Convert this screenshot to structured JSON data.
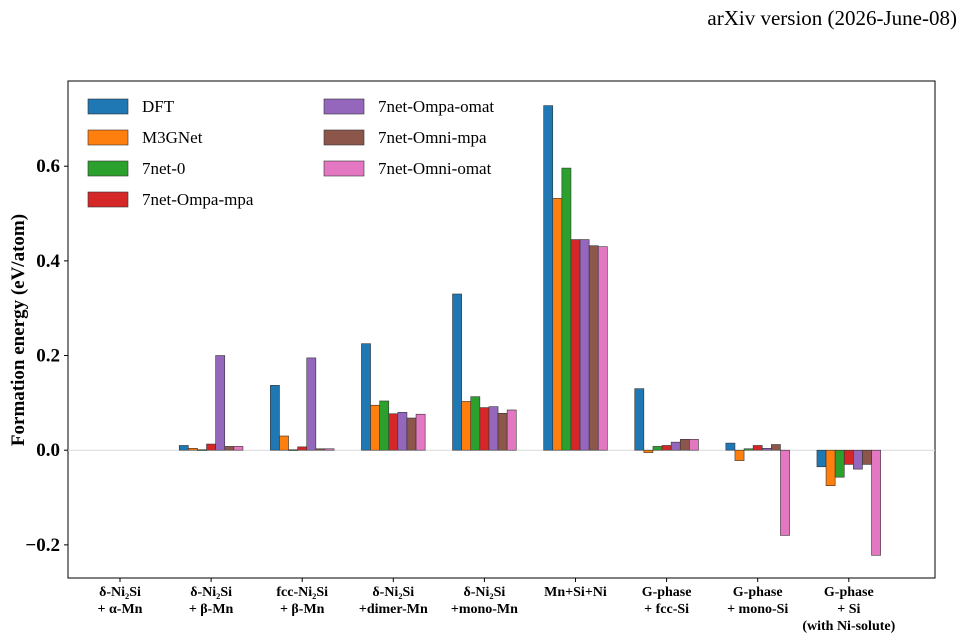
{
  "header": {
    "text": "arXiv version (2026-June-08)"
  },
  "chart_data": {
    "type": "bar",
    "title": "",
    "xlabel": "",
    "ylabel": "Formation energy (eV/atom)",
    "ylim": [
      -0.27,
      0.78
    ],
    "yticks": [
      -0.2,
      0.0,
      0.2,
      0.4,
      0.6
    ],
    "ytick_labels": [
      "−0.2",
      "0.0",
      "0.2",
      "0.4",
      "0.6"
    ],
    "grid": false,
    "zero_line": true,
    "legend_position": "top-left",
    "categories": [
      [
        "δ-Ni₂Si",
        "+ α-Mn"
      ],
      [
        "δ-Ni₂Si",
        "+ β-Mn"
      ],
      [
        "fcc-Ni₂Si",
        "+ β-Mn"
      ],
      [
        "δ-Ni₂Si",
        "+dimer-Mn"
      ],
      [
        "δ-Ni₂Si",
        "+mono-Mn"
      ],
      [
        "Mn+Si+Ni"
      ],
      [
        "G-phase",
        "+ fcc-Si"
      ],
      [
        "G-phase",
        "+ mono-Si"
      ],
      [
        "G-phase",
        "+ Si",
        "(with Ni-solute)"
      ]
    ],
    "series": [
      {
        "name": "DFT",
        "color": "#1f77b4",
        "values": [
          0.0,
          0.01,
          0.137,
          0.225,
          0.33,
          0.728,
          0.13,
          0.015,
          -0.035
        ]
      },
      {
        "name": "M3GNet",
        "color": "#ff7f0e",
        "values": [
          0.0,
          0.004,
          0.03,
          0.095,
          0.103,
          0.532,
          -0.005,
          -0.022,
          -0.075
        ]
      },
      {
        "name": "7net-0",
        "color": "#2ca02c",
        "values": [
          0.0,
          0.001,
          0.001,
          0.104,
          0.113,
          0.596,
          0.008,
          0.003,
          -0.057
        ]
      },
      {
        "name": "7net-Ompa-mpa",
        "color": "#d62728",
        "values": [
          0.0,
          0.013,
          0.007,
          0.077,
          0.09,
          0.445,
          0.01,
          0.01,
          -0.03
        ]
      },
      {
        "name": "7net-Ompa-omat",
        "color": "#9467bd",
        "values": [
          0.0,
          0.2,
          0.195,
          0.08,
          0.092,
          0.445,
          0.017,
          0.004,
          -0.04
        ]
      },
      {
        "name": "7net-Omni-mpa",
        "color": "#8c564b",
        "values": [
          0.0,
          0.008,
          0.003,
          0.068,
          0.078,
          0.432,
          0.023,
          0.012,
          -0.03
        ]
      },
      {
        "name": "7net-Omni-omat",
        "color": "#e377c2",
        "values": [
          0.0,
          0.008,
          0.003,
          0.076,
          0.085,
          0.43,
          0.023,
          -0.18,
          -0.222
        ]
      }
    ]
  }
}
